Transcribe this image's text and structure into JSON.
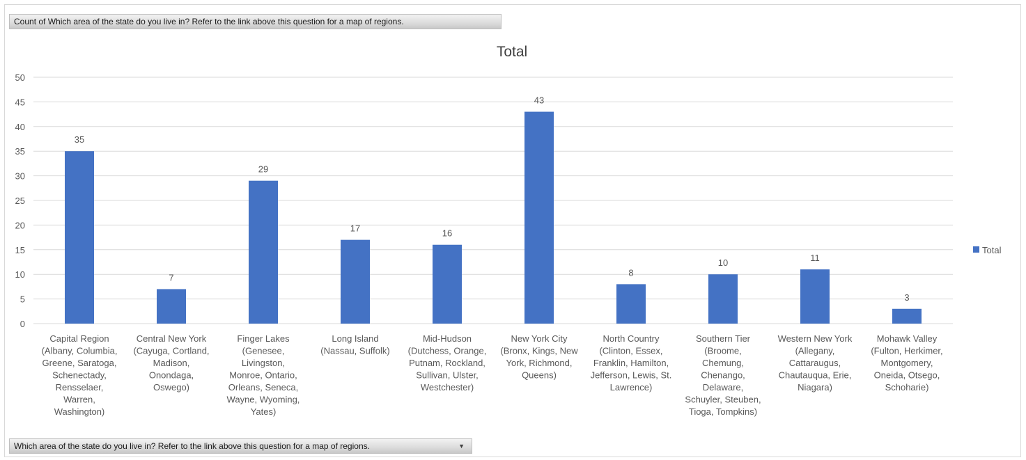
{
  "value_field_button": {
    "label": "Count of Which area of the state  do you live in? Refer to the link above this question for a map of regions."
  },
  "axis_field_button": {
    "label": "Which area of the state do you live in? Refer to the link above this question for a map of regions.",
    "icon": "dropdown-arrow-icon"
  },
  "chart_data": {
    "type": "bar",
    "title": "Total",
    "xlabel": "",
    "ylabel": "",
    "ylim": [
      0,
      50
    ],
    "yticks": [
      0,
      5,
      10,
      15,
      20,
      25,
      30,
      35,
      40,
      45,
      50
    ],
    "grid": true,
    "legend_position": "right",
    "categories": [
      [
        "Capital Region",
        "(Albany, Columbia,",
        "Greene, Saratoga,",
        "Schenectady,",
        "Rensselaer,",
        "Warren,",
        "Washington)"
      ],
      [
        "Central New York",
        "(Cayuga, Cortland,",
        "Madison,",
        "Onondaga,",
        "Oswego)"
      ],
      [
        "Finger Lakes",
        "(Genesee,",
        "Livingston,",
        "Monroe, Ontario,",
        "Orleans, Seneca,",
        "Wayne, Wyoming,",
        "Yates)"
      ],
      [
        "Long Island",
        "(Nassau, Suffolk)"
      ],
      [
        "Mid-Hudson",
        "(Dutchess, Orange,",
        "Putnam, Rockland,",
        "Sullivan, Ulster,",
        "Westchester)"
      ],
      [
        "New York City",
        "(Bronx, Kings, New",
        "York, Richmond,",
        "Queens)"
      ],
      [
        "North Country",
        "(Clinton, Essex,",
        "Franklin, Hamilton,",
        "Jefferson, Lewis, St.",
        "Lawrence)"
      ],
      [
        "Southern Tier",
        "(Broome,",
        "Chemung,",
        "Chenango,",
        "Delaware,",
        "Schuyler, Steuben,",
        "Tioga, Tompkins)"
      ],
      [
        "Western New York",
        "(Allegany,",
        "Cattaraugus,",
        "Chautauqua, Erie,",
        "Niagara)"
      ],
      [
        "Mohawk Valley",
        "(Fulton, Herkimer,",
        "Montgomery,",
        "Oneida, Otsego,",
        "Schoharie)"
      ]
    ],
    "series": [
      {
        "name": "Total",
        "color": "#4472c4",
        "values": [
          35,
          7,
          29,
          17,
          16,
          43,
          8,
          10,
          11,
          3
        ]
      }
    ],
    "colors": {
      "bar": "#4472c4",
      "grid": "#d9d9d9",
      "text": "#595959",
      "title": "#404040"
    }
  }
}
